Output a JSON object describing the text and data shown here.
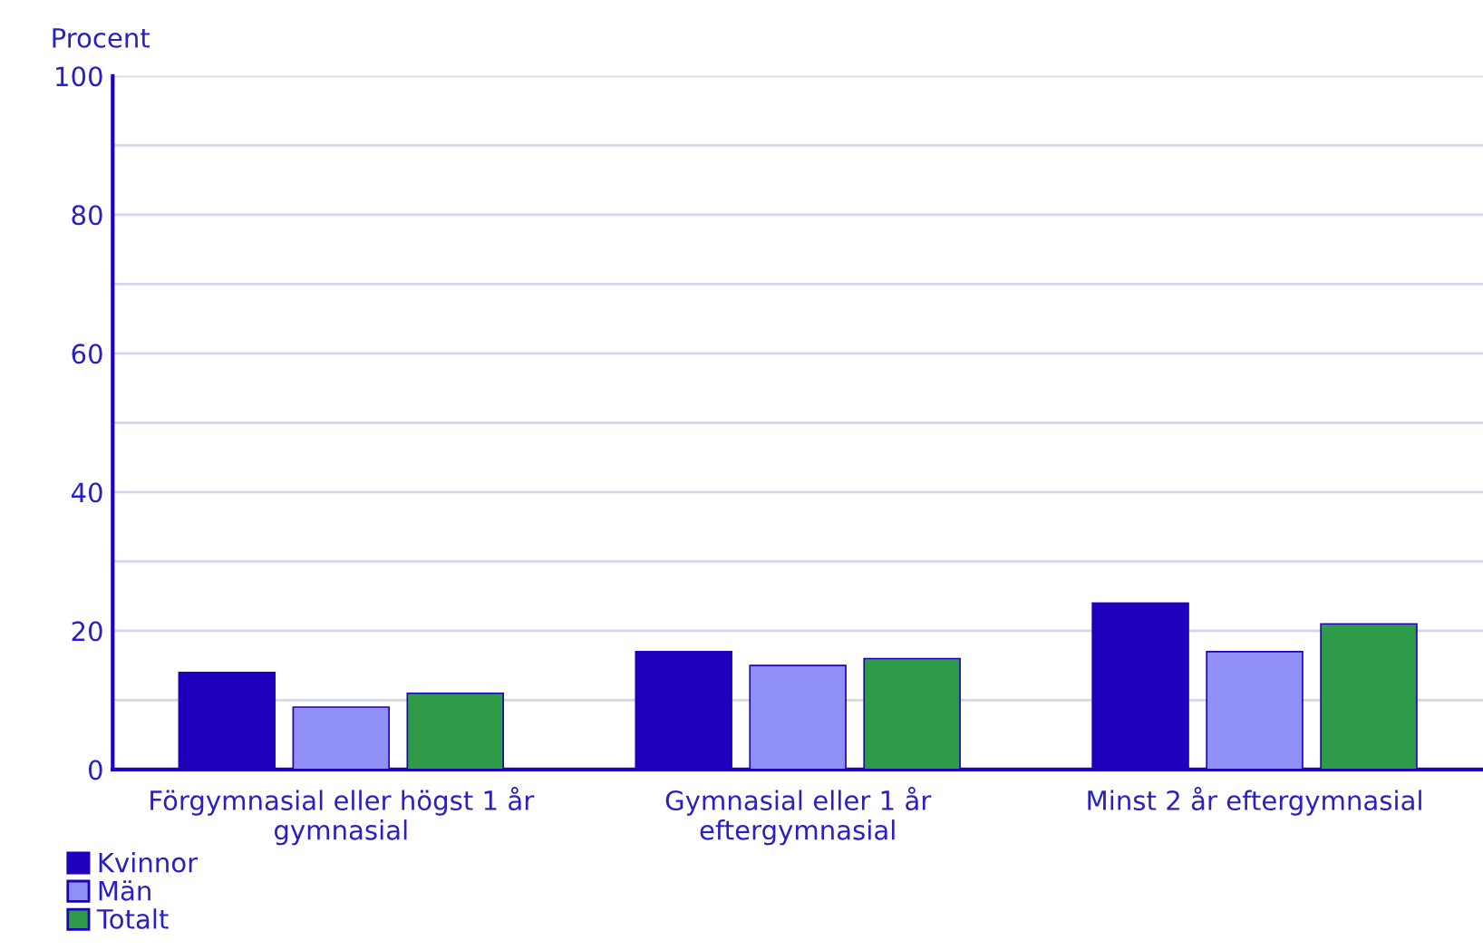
{
  "chart_data": {
    "type": "bar",
    "ylabel": "Procent",
    "categories": [
      "Förgymnasial eller högst 1 år gymnasial",
      "Gymnasial eller 1 år eftergymnasial",
      "Minst 2 år eftergymnasial"
    ],
    "series": [
      {
        "name": "Kvinnor",
        "color": "#1e00be",
        "values": [
          14,
          17,
          24
        ]
      },
      {
        "name": "Män",
        "color": "#8f8ff5",
        "values": [
          9,
          15,
          17
        ]
      },
      {
        "name": "Totalt",
        "color": "#2e9b48",
        "values": [
          11,
          16,
          21
        ]
      }
    ],
    "ylim": [
      0,
      100
    ],
    "yticks": [
      0,
      {
        "value": 10,
        "label": null
      },
      20,
      {
        "value": 30,
        "label": null
      },
      40,
      {
        "value": 50,
        "label": null
      },
      60,
      {
        "value": 70,
        "label": null
      },
      80,
      {
        "value": 90,
        "label": null
      },
      100
    ],
    "grid": "y",
    "legend": "bottom left"
  }
}
